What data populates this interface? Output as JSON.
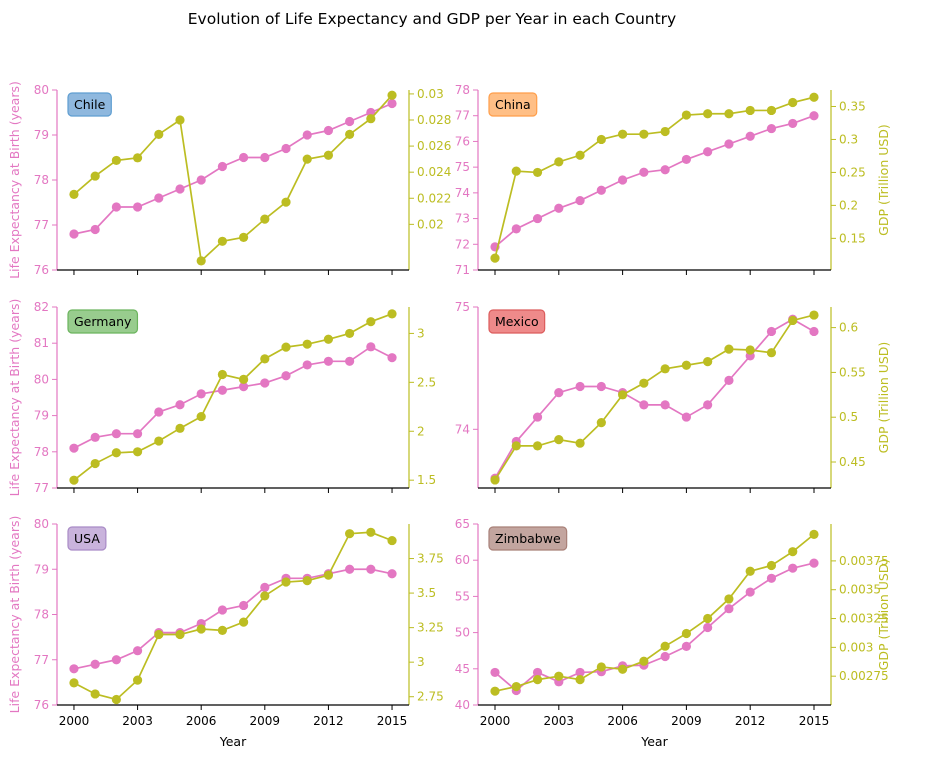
{
  "figure": {
    "title": "Evolution of Life Expectancy and GDP per Year in each Country"
  },
  "colors": {
    "life": "#e377c2",
    "gdp": "#bcbd22",
    "axis": "#000000"
  },
  "chart_data": [
    {
      "type": "line",
      "country": "Chile",
      "badge_color": "#8fb8de",
      "badge_border": "#5f9ed1",
      "x": [
        2000,
        2001,
        2002,
        2003,
        2004,
        2005,
        2006,
        2007,
        2008,
        2009,
        2010,
        2011,
        2012,
        2013,
        2014,
        2015
      ],
      "series": [
        {
          "name": "Life Expectancy",
          "axis": "left",
          "values": [
            76.8,
            76.9,
            77.4,
            77.4,
            77.6,
            77.8,
            78.0,
            78.3,
            78.5,
            78.5,
            78.7,
            79.0,
            79.1,
            79.3,
            79.5,
            79.7
          ]
        },
        {
          "name": "GDP",
          "axis": "right",
          "values": [
            0.0223,
            0.0237,
            0.0249,
            0.0251,
            0.0269,
            0.028,
            0.0172,
            0.0187,
            0.019,
            0.0204,
            0.0217,
            0.025,
            0.0253,
            0.0269,
            0.0281,
            0.0299
          ]
        }
      ],
      "ylabel_left": "Life Expectancy at Birth (years)",
      "ylabel_right": "",
      "ylim_left": [
        76,
        80
      ],
      "ylim_right": [
        0.0165,
        0.0303
      ],
      "yticks_left": [
        76,
        77,
        78,
        79,
        80
      ],
      "yticks_right": [
        0.02,
        0.022,
        0.024,
        0.026,
        0.028,
        0.03
      ],
      "ytick_labels_left": [
        "76",
        "77",
        "78",
        "79",
        "80"
      ],
      "ytick_labels_right": [
        "0.02",
        "0.022",
        "0.024",
        "0.026",
        "0.028",
        "0.03"
      ],
      "show_x_labels": false
    },
    {
      "type": "line",
      "country": "China",
      "badge_color": "#ffbf86",
      "badge_border": "#ff9e4a",
      "x": [
        2000,
        2001,
        2002,
        2003,
        2004,
        2005,
        2006,
        2007,
        2008,
        2009,
        2010,
        2011,
        2012,
        2013,
        2014,
        2015
      ],
      "series": [
        {
          "name": "Life Expectancy",
          "axis": "left",
          "values": [
            71.9,
            72.6,
            73.0,
            73.4,
            73.7,
            74.1,
            74.5,
            74.8,
            74.9,
            75.3,
            75.6,
            75.9,
            76.2,
            76.5,
            76.7,
            77.0
          ]
        },
        {
          "name": "GDP",
          "axis": "right",
          "values": [
            0.12,
            0.252,
            0.25,
            0.266,
            0.276,
            0.3,
            0.308,
            0.308,
            0.312,
            0.337,
            0.339,
            0.339,
            0.344,
            0.344,
            0.356,
            0.364
          ]
        }
      ],
      "ylabel_left": "",
      "ylabel_right": "GDP (Trillion USD)",
      "ylim_left": [
        71,
        78
      ],
      "ylim_right": [
        0.102,
        0.375
      ],
      "yticks_left": [
        71,
        72,
        73,
        74,
        75,
        76,
        77,
        78
      ],
      "yticks_right": [
        0.15,
        0.2,
        0.25,
        0.3,
        0.35
      ],
      "ytick_labels_left": [
        "71",
        "72",
        "73",
        "74",
        "75",
        "76",
        "77",
        "78"
      ],
      "ytick_labels_right": [
        "0.15",
        "0.2",
        "0.25",
        "0.3",
        "0.35"
      ],
      "show_x_labels": false
    },
    {
      "type": "line",
      "country": "Germany",
      "badge_color": "#98cc8e",
      "badge_border": "#6bb45d",
      "x": [
        2000,
        2001,
        2002,
        2003,
        2004,
        2005,
        2006,
        2007,
        2008,
        2009,
        2010,
        2011,
        2012,
        2013,
        2014,
        2015
      ],
      "series": [
        {
          "name": "Life Expectancy",
          "axis": "left",
          "values": [
            78.1,
            78.4,
            78.5,
            78.5,
            79.1,
            79.3,
            79.6,
            79.7,
            79.8,
            79.9,
            80.1,
            80.4,
            80.5,
            80.5,
            80.9,
            80.6
          ]
        },
        {
          "name": "GDP",
          "axis": "right",
          "values": [
            1.5,
            1.67,
            1.78,
            1.79,
            1.9,
            2.03,
            2.15,
            2.58,
            2.53,
            2.74,
            2.86,
            2.89,
            2.94,
            3.0,
            3.12,
            3.2
          ]
        }
      ],
      "ylabel_left": "Life Expectancy at Birth (years)",
      "ylabel_right": "",
      "ylim_left": [
        77,
        82
      ],
      "ylim_right": [
        1.42,
        3.27
      ],
      "yticks_left": [
        77,
        78,
        79,
        80,
        81,
        82
      ],
      "yticks_right": [
        1.5,
        2,
        2.5,
        3
      ],
      "ytick_labels_left": [
        "77",
        "78",
        "79",
        "80",
        "81",
        "82"
      ],
      "ytick_labels_right": [
        "1.5",
        "2",
        "2.5",
        "3"
      ],
      "show_x_labels": false
    },
    {
      "type": "line",
      "country": "Mexico",
      "badge_color": "#ee8a8a",
      "badge_border": "#dc5c5c",
      "x": [
        2000,
        2001,
        2002,
        2003,
        2004,
        2005,
        2006,
        2007,
        2008,
        2009,
        2010,
        2011,
        2012,
        2013,
        2014,
        2015
      ],
      "series": [
        {
          "name": "Life Expectancy",
          "axis": "left",
          "values": [
            73.6,
            73.9,
            74.1,
            74.3,
            74.35,
            74.35,
            74.3,
            74.2,
            74.2,
            74.1,
            74.2,
            74.4,
            74.6,
            74.8,
            74.9,
            74.8
          ]
        },
        {
          "name": "GDP",
          "axis": "right",
          "values": [
            0.43,
            0.468,
            0.468,
            0.475,
            0.471,
            0.494,
            0.525,
            0.538,
            0.554,
            0.558,
            0.562,
            0.576,
            0.575,
            0.572,
            0.608,
            0.614
          ]
        }
      ],
      "ylabel_left": "",
      "ylabel_right": "GDP (Trillion USD)",
      "ylim_left": [
        73.52,
        75.0
      ],
      "ylim_right": [
        0.421,
        0.623
      ],
      "yticks_left": [
        74,
        75
      ],
      "yticks_right": [
        0.45,
        0.5,
        0.55,
        0.6
      ],
      "ytick_labels_left": [
        "74",
        "75"
      ],
      "ytick_labels_right": [
        "0.45",
        "0.5",
        "0.55",
        "0.6"
      ],
      "show_x_labels": false
    },
    {
      "type": "line",
      "country": "USA",
      "badge_color": "#c9b3dc",
      "badge_border": "#a98bc6",
      "x": [
        2000,
        2001,
        2002,
        2003,
        2004,
        2005,
        2006,
        2007,
        2008,
        2009,
        2010,
        2011,
        2012,
        2013,
        2014,
        2015
      ],
      "series": [
        {
          "name": "Life Expectancy",
          "axis": "left",
          "values": [
            76.8,
            76.9,
            77.0,
            77.2,
            77.6,
            77.6,
            77.8,
            78.1,
            78.2,
            78.6,
            78.8,
            78.8,
            78.9,
            79.0,
            79.0,
            78.9
          ]
        },
        {
          "name": "GDP",
          "axis": "right",
          "values": [
            2.85,
            2.77,
            2.73,
            2.87,
            3.2,
            3.2,
            3.24,
            3.23,
            3.29,
            3.48,
            3.58,
            3.59,
            3.63,
            3.93,
            3.94,
            3.88
          ]
        }
      ],
      "ylabel_left": "Life Expectancy at Birth (years)",
      "ylabel_right": "",
      "ylim_left": [
        76,
        80
      ],
      "ylim_right": [
        2.69,
        4.0
      ],
      "yticks_left": [
        76,
        77,
        78,
        79,
        80
      ],
      "yticks_right": [
        2.75,
        3,
        3.25,
        3.5,
        3.75
      ],
      "ytick_labels_left": [
        "76",
        "77",
        "78",
        "79",
        "80"
      ],
      "ytick_labels_right": [
        "2.75",
        "3",
        "3.25",
        "3.5",
        "3.75"
      ],
      "show_x_labels": true
    },
    {
      "type": "line",
      "country": "Zimbabwe",
      "badge_color": "#c3a59f",
      "badge_border": "#a88078",
      "x": [
        2000,
        2001,
        2002,
        2003,
        2004,
        2005,
        2006,
        2007,
        2008,
        2009,
        2010,
        2011,
        2012,
        2013,
        2014,
        2015
      ],
      "series": [
        {
          "name": "Life Expectancy",
          "axis": "left",
          "values": [
            44.5,
            42.0,
            44.5,
            43.2,
            44.5,
            44.6,
            45.4,
            45.5,
            46.7,
            48.1,
            50.7,
            53.3,
            55.6,
            57.5,
            58.9,
            59.6
          ]
        },
        {
          "name": "GDP",
          "axis": "right",
          "values": [
            0.00262,
            0.00266,
            0.00272,
            0.00275,
            0.00272,
            0.00283,
            0.00281,
            0.00288,
            0.00301,
            0.00312,
            0.00325,
            0.00342,
            0.00366,
            0.00371,
            0.00383,
            0.00398
          ]
        }
      ],
      "ylabel_left": "",
      "ylabel_right": "GDP (Trillion USD)",
      "ylim_left": [
        40,
        65
      ],
      "ylim_right": [
        0.0025,
        0.00407
      ],
      "yticks_left": [
        40,
        45,
        50,
        55,
        60,
        65
      ],
      "yticks_right": [
        0.00275,
        0.003,
        0.00325,
        0.0035,
        0.00375
      ],
      "ytick_labels_left": [
        "40",
        "45",
        "50",
        "55",
        "60",
        "65"
      ],
      "ytick_labels_right": [
        "0.00275",
        "0.003",
        "0.00325",
        "0.0035",
        "0.00375"
      ],
      "show_x_labels": true
    }
  ],
  "x_axis": {
    "xlim": [
      1999.2,
      2015.8
    ],
    "ticks": [
      2000,
      2003,
      2006,
      2009,
      2012,
      2015
    ],
    "tick_labels": [
      "2000",
      "2003",
      "2006",
      "2009",
      "2012",
      "2015"
    ],
    "xlabel": "Year"
  }
}
